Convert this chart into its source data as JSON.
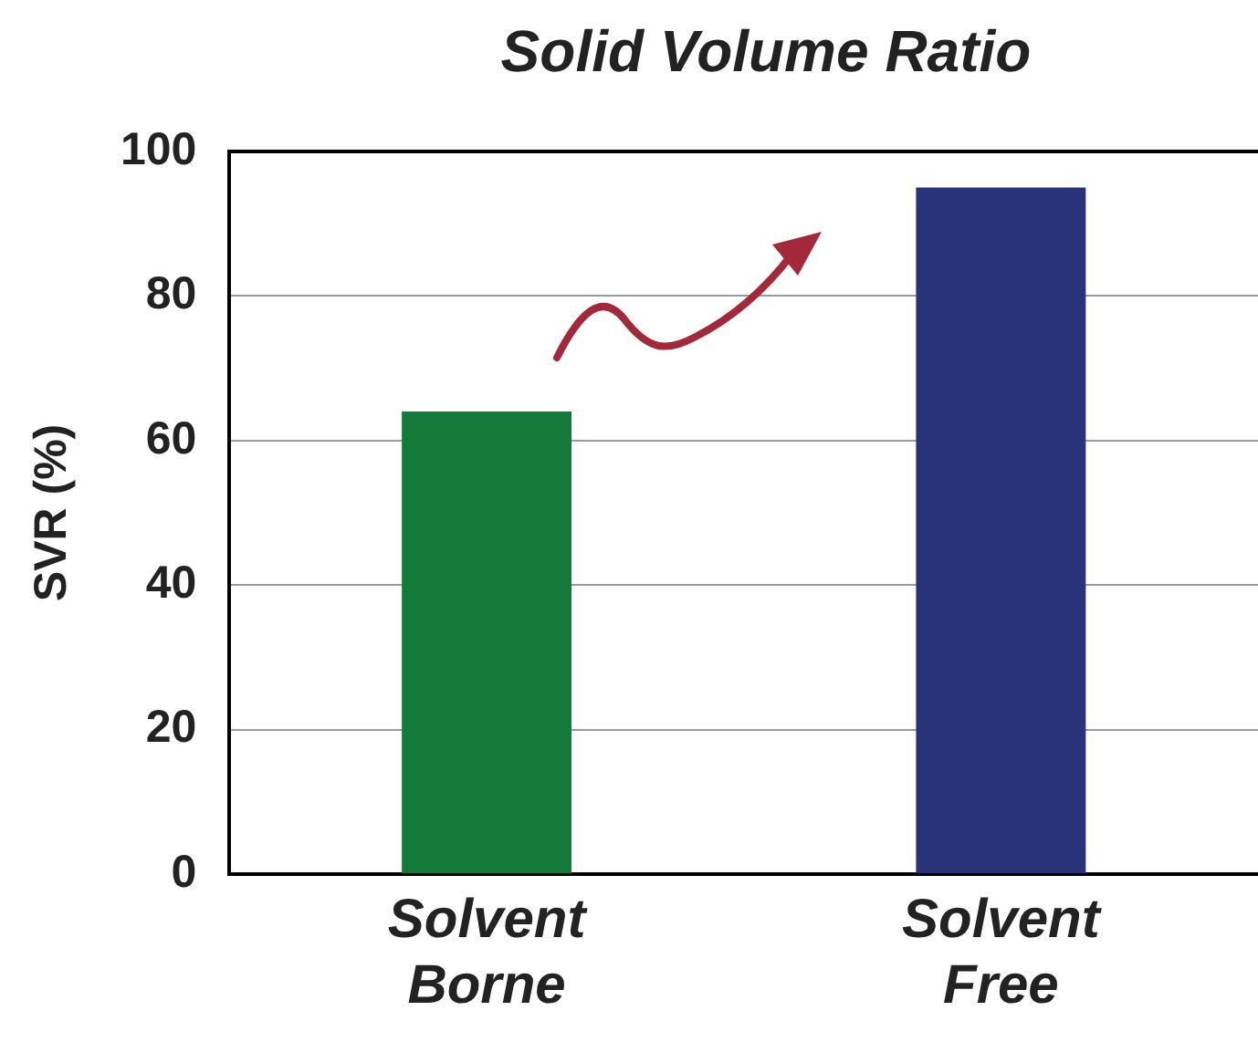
{
  "chart_data": {
    "type": "bar",
    "title": "Solid Volume Ratio",
    "ylabel": "SVR (%)",
    "categories": [
      "Solvent Borne",
      "Solvent Free"
    ],
    "values": [
      64,
      95
    ],
    "colors": [
      "#137a3a",
      "#283379"
    ],
    "ylim": [
      0,
      100
    ],
    "yticks": [
      0,
      20,
      40,
      60,
      80,
      100
    ],
    "grid": "y",
    "legend": false
  }
}
